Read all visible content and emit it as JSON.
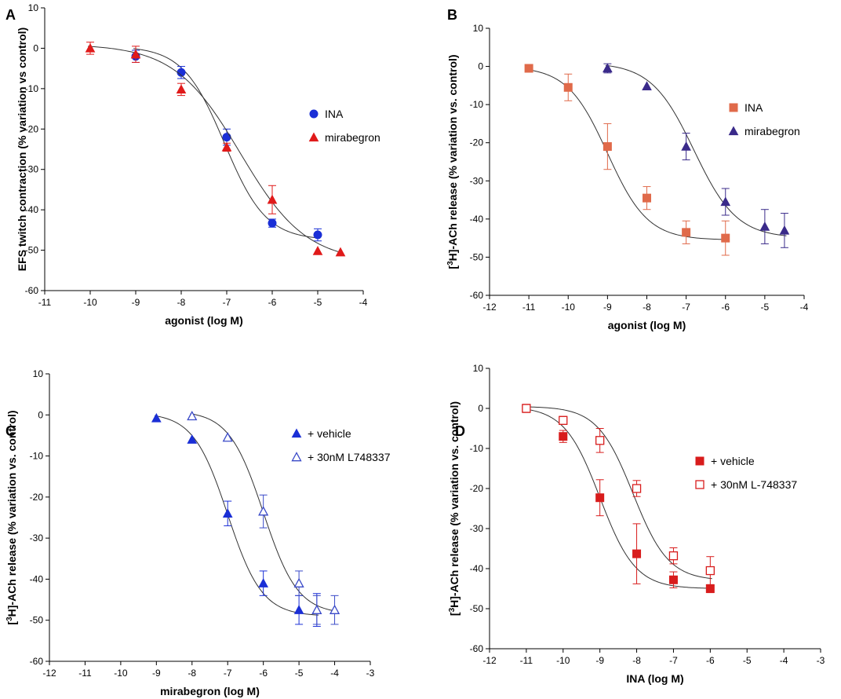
{
  "chart_data": [
    {
      "panel": "A",
      "type": "scatter",
      "xlabel": "agonist (log M)",
      "ylabel": "EFS twitch contraction (% variation vs control)",
      "xlim": [
        -11,
        -4
      ],
      "ylim": [
        -60,
        10
      ],
      "xticks": [
        -11,
        -10,
        -9,
        -8,
        -7,
        -6,
        -5,
        -4
      ],
      "yticks": [
        -60,
        -50,
        -40,
        -30,
        -20,
        -10,
        0,
        10
      ],
      "legend_position": "right-middle",
      "series": [
        {
          "name": "INA",
          "marker": "circle",
          "filled": true,
          "color": "#1a2fd6",
          "x": [
            -9,
            -8,
            -7,
            -6,
            -5
          ],
          "y": [
            -2,
            -6,
            -22,
            -43.3,
            -46.2
          ],
          "err": [
            1.5,
            1.5,
            2,
            1,
            1.5
          ],
          "curve": {
            "top": 0.5,
            "bottom": -47.5,
            "logec50": -7.05,
            "hill": 0.95
          }
        },
        {
          "name": "mirabegron",
          "marker": "triangle",
          "filled": true,
          "color": "#e01a1a",
          "x": [
            -10,
            -9,
            -8,
            -7,
            -6,
            -5,
            -4.5
          ],
          "y": [
            0,
            -1.5,
            -10.2,
            -24.5,
            -37.5,
            -50.2,
            -50.5
          ],
          "err": [
            1.5,
            2,
            1.5,
            1,
            3.5,
            0,
            0
          ],
          "curve": {
            "top": 1,
            "bottom": -53,
            "logec50": -6.7,
            "hill": 0.6
          }
        }
      ]
    },
    {
      "panel": "B",
      "type": "scatter",
      "xlabel": "agonist (log M)",
      "ylabel_prefix": "[",
      "ylabel_super": "3",
      "ylabel_rest": "H]-ACh release (% variation vs. control)",
      "xlim": [
        -12,
        -4
      ],
      "ylim": [
        -60,
        10
      ],
      "xticks": [
        -12,
        -11,
        -10,
        -9,
        -8,
        -7,
        -6,
        -5,
        -4
      ],
      "yticks": [
        -60,
        -50,
        -40,
        -30,
        -20,
        -10,
        0,
        10
      ],
      "legend_position": "right-middle",
      "series": [
        {
          "name": "INA",
          "marker": "square",
          "filled": true,
          "color": "#e06a4a",
          "x": [
            -11,
            -10,
            -9,
            -8,
            -7,
            -6
          ],
          "y": [
            -0.5,
            -5.5,
            -21,
            -34.5,
            -43.5,
            -45
          ],
          "err": [
            0,
            3.5,
            6,
            3,
            3,
            4.5
          ],
          "curve": {
            "top": 0,
            "bottom": -45.5,
            "logec50": -9.0,
            "hill": 0.85
          }
        },
        {
          "name": "mirabegron",
          "marker": "triangle",
          "filled": true,
          "color": "#3a2a8a",
          "x": [
            -9,
            -8,
            -7,
            -6,
            -5,
            -4.5
          ],
          "y": [
            -0.5,
            -5.2,
            -21,
            -35.5,
            -42,
            -43
          ],
          "err": [
            1.2,
            0,
            3.5,
            3.5,
            4.5,
            4.5
          ],
          "curve": {
            "top": 1,
            "bottom": -45,
            "logec50": -6.8,
            "hill": 0.8
          }
        }
      ]
    },
    {
      "panel": "C",
      "type": "scatter",
      "xlabel": "mirabegron (log M)",
      "ylabel_prefix": "[",
      "ylabel_super": "3",
      "ylabel_rest": "H]-ACh release (% variation vs. control)",
      "xlim": [
        -12,
        -3
      ],
      "ylim": [
        -60,
        10
      ],
      "xticks": [
        -12,
        -11,
        -10,
        -9,
        -8,
        -7,
        -6,
        -5,
        -4,
        -3
      ],
      "yticks": [
        -60,
        -50,
        -40,
        -30,
        -20,
        -10,
        0,
        10
      ],
      "legend_position": "right-middle",
      "series": [
        {
          "name": "+ vehicle",
          "marker": "triangle",
          "filled": true,
          "color": "#1a2fd6",
          "x": [
            -9,
            -8,
            -7,
            -6,
            -5,
            -4.5
          ],
          "y": [
            -0.8,
            -6,
            -24,
            -41,
            -47.5,
            -47.5
          ],
          "err": [
            0,
            0,
            3,
            3,
            3.5,
            4
          ],
          "curve": {
            "top": 0.5,
            "bottom": -49,
            "logec50": -7.0,
            "hill": 0.9
          }
        },
        {
          "name": "+ 30nM L748337",
          "marker": "triangle",
          "filled": false,
          "color": "#3a4ac8",
          "x": [
            -8,
            -7,
            -6,
            -5,
            -4.5,
            -4
          ],
          "y": [
            -0.3,
            -5.5,
            -23.5,
            -41,
            -47.5,
            -47.5
          ],
          "err": [
            0,
            0,
            4,
            3,
            3.5,
            3.5
          ],
          "curve": {
            "top": 1,
            "bottom": -48.5,
            "logec50": -6.0,
            "hill": 0.9
          }
        }
      ]
    },
    {
      "panel": "D",
      "type": "scatter",
      "xlabel": "INA (log M)",
      "ylabel_prefix": "[",
      "ylabel_super": "3",
      "ylabel_rest": "H]-ACh release (% variation vs. control)",
      "xlim": [
        -12,
        -3
      ],
      "ylim": [
        -60,
        10
      ],
      "xticks": [
        -12,
        -11,
        -10,
        -9,
        -8,
        -7,
        -6,
        -5,
        -4,
        -3
      ],
      "yticks": [
        -60,
        -50,
        -40,
        -30,
        -20,
        -10,
        0,
        10
      ],
      "legend_position": "right-middle",
      "series": [
        {
          "name": "+ vehicle",
          "marker": "square",
          "filled": true,
          "color": "#d81c1c",
          "x": [
            -11,
            -10,
            -9,
            -8,
            -7,
            -6
          ],
          "y": [
            0,
            -7,
            -22.3,
            -36.3,
            -42.8,
            -45
          ],
          "err": [
            1,
            1.5,
            4.5,
            7.5,
            2,
            1
          ],
          "curve": {
            "top": 0.5,
            "bottom": -45,
            "logec50": -9.0,
            "hill": 0.9
          }
        },
        {
          "name": "+ 30nM L-748337",
          "marker": "square",
          "filled": false,
          "color": "#d81c1c",
          "x": [
            -11,
            -10,
            -9,
            -8,
            -7,
            -6
          ],
          "y": [
            0,
            -3,
            -8,
            -20,
            -36.8,
            -40.5
          ],
          "err": [
            1,
            1,
            3,
            2,
            2,
            3.5
          ],
          "curve": {
            "top": 0.5,
            "bottom": -43,
            "logec50": -8.1,
            "hill": 0.9
          }
        }
      ]
    }
  ]
}
